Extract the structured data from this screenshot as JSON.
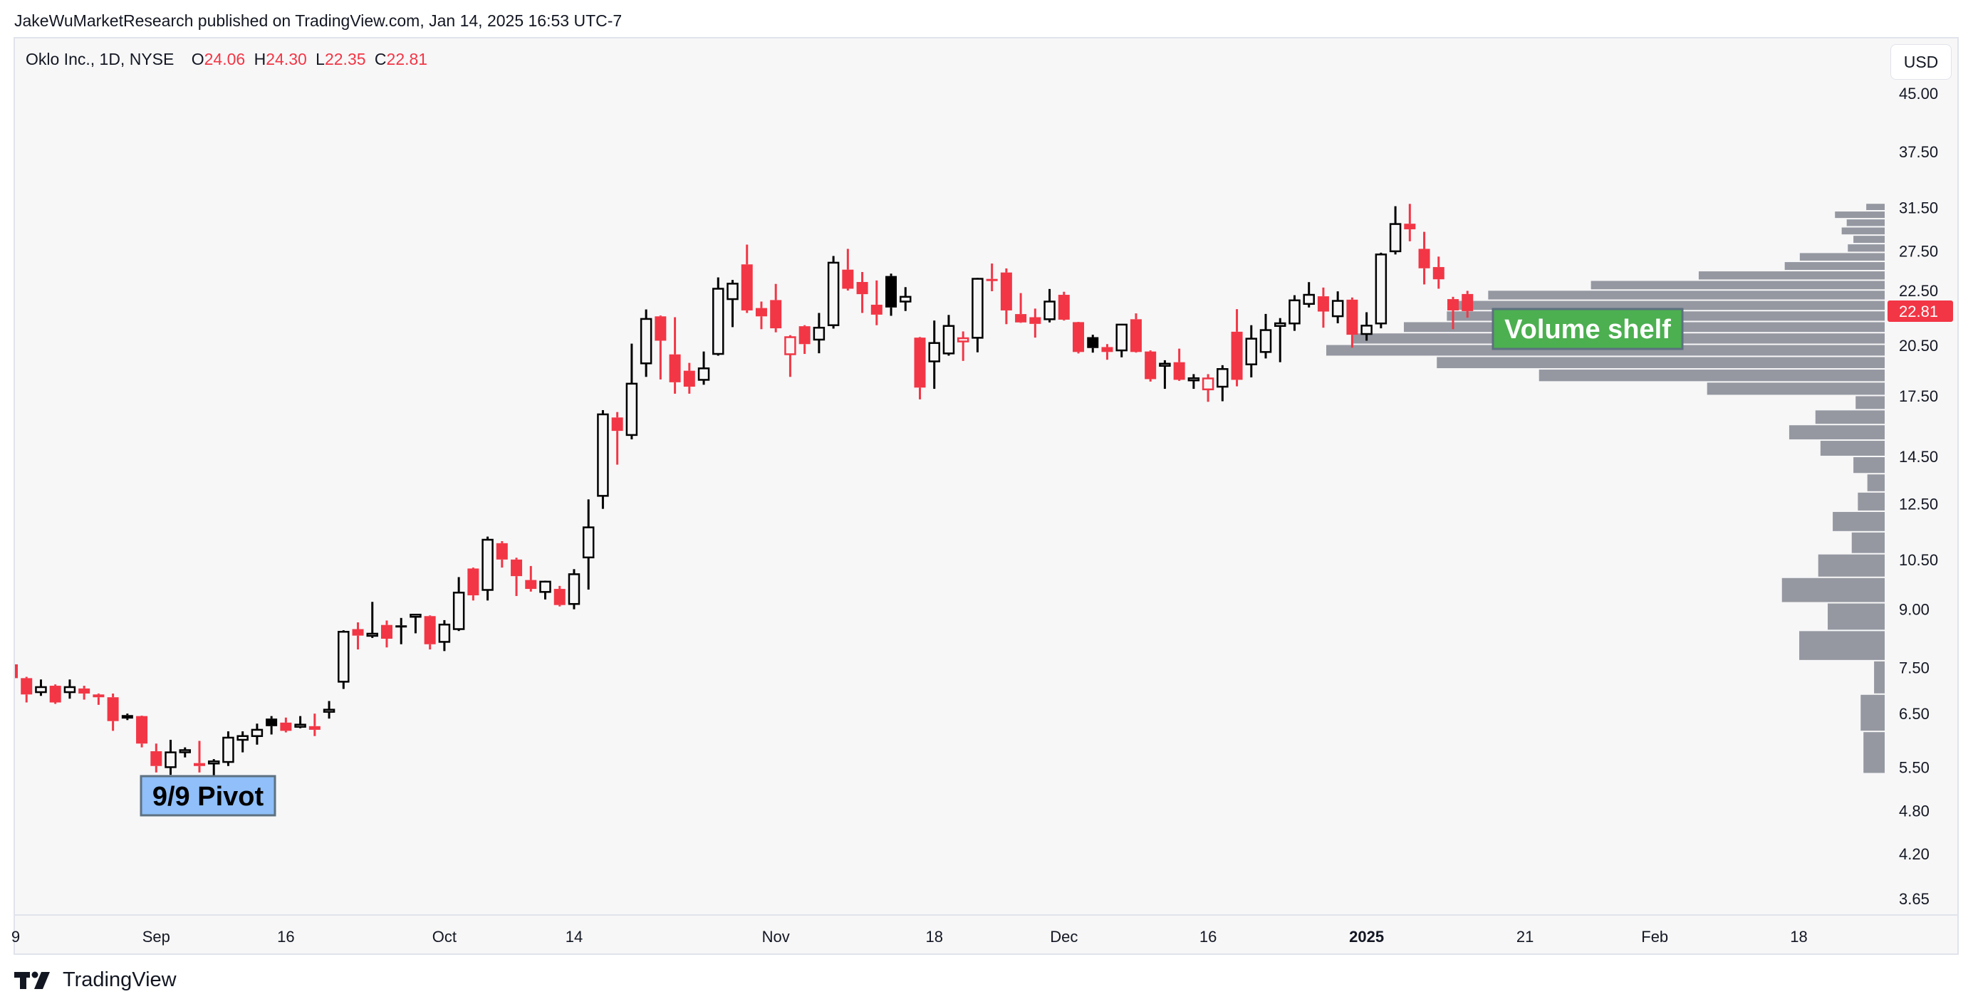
{
  "header": {
    "published": "JakeWuMarketResearch published on TradingView.com, Jan 14, 2025 16:53 UTC-7"
  },
  "legend": {
    "symbol": "Oklo Inc., 1D, NYSE",
    "o_label": "O",
    "o": "24.06",
    "h_label": "H",
    "h": "24.30",
    "l_label": "L",
    "l": "22.35",
    "c_label": "C",
    "c": "22.81"
  },
  "currency_button": "USD",
  "footer": {
    "brand": "TradingView",
    "icon": "tradingview-logo-icon"
  },
  "colors": {
    "up": "#000000",
    "down": "#f23645",
    "volume_profile": "#9598a1",
    "panel_bg": "#f7f7f8",
    "pivot_box": "#90bff9",
    "shelf_box": "#4caf50"
  },
  "annotations": {
    "pivot": "9/9 Pivot",
    "shelf": "Volume shelf"
  },
  "chart_data": {
    "type": "candlestick",
    "y_scale": "log",
    "ylim": [
      3.65,
      45
    ],
    "grid": false,
    "last_price": "22.81",
    "y_ticks": [
      "45.00",
      "37.50",
      "31.50",
      "27.50",
      "22.50",
      "20.50",
      "17.50",
      "14.50",
      "12.50",
      "10.50",
      "9.00",
      "7.50",
      "6.50",
      "5.50",
      "4.80",
      "4.20",
      "3.65"
    ],
    "x_ticks": [
      {
        "label": "9",
        "date": "2024-08-19"
      },
      {
        "label": "Sep",
        "date": "2024-09-03"
      },
      {
        "label": "16",
        "date": "2024-09-16"
      },
      {
        "label": "Oct",
        "date": "2024-10-01"
      },
      {
        "label": "14",
        "date": "2024-10-14"
      },
      {
        "label": "Nov",
        "date": "2024-11-01"
      },
      {
        "label": "18",
        "date": "2024-11-18"
      },
      {
        "label": "Dec",
        "date": "2024-12-02"
      },
      {
        "label": "16",
        "date": "2024-12-16"
      },
      {
        "label": "2025",
        "date": "2025-01-02",
        "bold": true
      },
      {
        "label": "21",
        "date": "2025-01-21"
      },
      {
        "label": "Feb",
        "date": "2025-02-03"
      },
      {
        "label": "18",
        "date": "2025-02-18"
      }
    ],
    "candles_columns": [
      "date",
      "open",
      "high",
      "low",
      "close"
    ],
    "candles": [
      [
        "2024-08-19",
        7.58,
        7.7,
        7.2,
        7.26
      ],
      [
        "2024-08-20",
        7.26,
        7.29,
        6.73,
        6.9
      ],
      [
        "2024-08-21",
        6.95,
        7.23,
        6.87,
        7.06
      ],
      [
        "2024-08-22",
        7.09,
        7.12,
        6.7,
        6.73
      ],
      [
        "2024-08-23",
        6.95,
        7.23,
        6.81,
        7.06
      ],
      [
        "2024-08-26",
        7.03,
        7.09,
        6.79,
        6.92
      ],
      [
        "2024-08-27",
        6.9,
        6.92,
        6.68,
        6.84
      ],
      [
        "2024-08-28",
        6.84,
        6.92,
        6.16,
        6.35
      ],
      [
        "2024-08-29",
        6.47,
        6.5,
        6.37,
        6.4
      ],
      [
        "2024-08-30",
        6.45,
        6.46,
        5.85,
        5.92
      ],
      [
        "2024-09-03",
        5.78,
        5.92,
        5.41,
        5.52
      ],
      [
        "2024-09-04",
        5.5,
        5.99,
        5.37,
        5.76
      ],
      [
        "2024-09-05",
        5.78,
        5.85,
        5.67,
        5.8
      ],
      [
        "2024-09-06",
        5.57,
        5.97,
        5.41,
        5.52
      ],
      [
        "2024-09-09",
        5.57,
        5.64,
        5.28,
        5.6
      ],
      [
        "2024-09-10",
        5.59,
        6.15,
        5.52,
        6.03
      ],
      [
        "2024-09-11",
        5.99,
        6.15,
        5.76,
        6.06
      ],
      [
        "2024-09-12",
        6.06,
        6.3,
        5.9,
        6.18
      ],
      [
        "2024-09-13",
        6.4,
        6.45,
        6.09,
        6.25
      ],
      [
        "2024-09-16",
        6.32,
        6.42,
        6.13,
        6.16
      ],
      [
        "2024-09-17",
        6.27,
        6.45,
        6.21,
        6.28
      ],
      [
        "2024-09-18",
        6.25,
        6.5,
        6.06,
        6.18
      ],
      [
        "2024-09-19",
        6.56,
        6.76,
        6.4,
        6.58
      ],
      [
        "2024-09-20",
        7.18,
        8.43,
        7.02,
        8.39
      ],
      [
        "2024-09-23",
        8.46,
        8.64,
        7.94,
        8.29
      ],
      [
        "2024-09-24",
        8.32,
        9.21,
        8.23,
        8.34
      ],
      [
        "2024-09-25",
        8.57,
        8.69,
        7.99,
        8.21
      ],
      [
        "2024-09-26",
        8.56,
        8.76,
        8.07,
        8.51
      ],
      [
        "2024-09-27",
        8.84,
        8.86,
        8.35,
        8.85
      ],
      [
        "2024-09-30",
        8.81,
        8.83,
        7.94,
        8.07
      ],
      [
        "2024-10-01",
        8.13,
        8.7,
        7.9,
        8.58
      ],
      [
        "2024-10-02",
        8.46,
        9.95,
        8.41,
        9.48
      ],
      [
        "2024-10-03",
        10.22,
        10.25,
        9.25,
        9.4
      ],
      [
        "2024-10-04",
        9.56,
        11.29,
        9.25,
        11.18
      ],
      [
        "2024-10-07",
        11.06,
        11.13,
        10.25,
        10.51
      ],
      [
        "2024-10-08",
        10.51,
        10.57,
        9.38,
        9.98
      ],
      [
        "2024-10-09",
        9.86,
        10.3,
        9.51,
        9.59
      ],
      [
        "2024-10-10",
        9.5,
        9.84,
        9.28,
        9.81
      ],
      [
        "2024-10-11",
        9.59,
        9.68,
        9.08,
        9.12
      ],
      [
        "2024-10-14",
        9.15,
        10.2,
        9.0,
        10.04
      ],
      [
        "2024-10-15",
        10.58,
        12.68,
        9.57,
        11.62
      ],
      [
        "2024-10-16",
        12.82,
        16.75,
        12.31,
        16.53
      ],
      [
        "2024-10-17",
        16.37,
        16.65,
        14.13,
        15.7
      ],
      [
        "2024-10-18",
        15.5,
        20.61,
        15.29,
        18.19
      ],
      [
        "2024-10-21",
        19.38,
        22.93,
        18.58,
        22.26
      ],
      [
        "2024-10-22",
        22.44,
        22.5,
        18.43,
        20.8
      ],
      [
        "2024-10-23",
        19.93,
        22.38,
        17.63,
        18.27
      ],
      [
        "2024-10-24",
        18.94,
        19.41,
        17.63,
        18.02
      ],
      [
        "2024-10-25",
        18.41,
        20.11,
        18.13,
        19.08
      ],
      [
        "2024-10-28",
        19.96,
        25.34,
        19.85,
        24.46
      ],
      [
        "2024-10-29",
        23.68,
        25.14,
        21.7,
        24.85
      ],
      [
        "2024-10-30",
        26.39,
        28.07,
        22.68,
        22.86
      ],
      [
        "2024-10-31",
        23.03,
        23.5,
        21.56,
        22.44
      ],
      [
        "2024-11-01",
        23.61,
        24.83,
        21.35,
        21.62
      ],
      [
        "2024-11-04",
        19.94,
        21.16,
        18.58,
        21.03
      ],
      [
        "2024-11-05",
        21.76,
        21.83,
        19.96,
        20.58
      ],
      [
        "2024-11-06",
        20.87,
        22.68,
        20.0,
        21.66
      ],
      [
        "2024-11-07",
        21.83,
        27.09,
        21.6,
        26.53
      ],
      [
        "2024-11-08",
        25.96,
        27.7,
        24.32,
        24.46
      ],
      [
        "2024-11-11",
        24.98,
        25.77,
        22.68,
        24.05
      ],
      [
        "2024-11-12",
        23.27,
        25.1,
        21.83,
        22.56
      ],
      [
        "2024-11-13",
        25.45,
        25.64,
        22.48,
        23.07
      ],
      [
        "2024-11-14",
        23.5,
        24.58,
        22.82,
        23.85
      ],
      [
        "2024-11-15",
        21.0,
        21.04,
        17.32,
        17.97
      ],
      [
        "2024-11-18",
        19.5,
        22.15,
        17.9,
        20.65
      ],
      [
        "2024-11-19",
        19.99,
        22.54,
        19.85,
        21.78
      ],
      [
        "2024-11-20",
        20.75,
        21.41,
        19.53,
        20.96
      ],
      [
        "2024-11-21",
        20.99,
        25.3,
        20.06,
        25.23
      ],
      [
        "2024-11-22",
        25.22,
        26.46,
        24.27,
        25.18
      ],
      [
        "2024-11-25",
        25.73,
        26.06,
        21.9,
        22.86
      ],
      [
        "2024-11-26",
        22.6,
        24.13,
        21.99,
        22.02
      ],
      [
        "2024-11-27",
        22.38,
        22.99,
        21.0,
        21.92
      ],
      [
        "2024-11-29",
        22.24,
        24.44,
        22.02,
        23.5
      ],
      [
        "2024-12-02",
        24.0,
        24.23,
        22.15,
        22.21
      ],
      [
        "2024-12-03",
        22.04,
        22.06,
        19.99,
        20.08
      ],
      [
        "2024-12-04",
        21.03,
        21.19,
        20.04,
        20.33
      ],
      [
        "2024-12-05",
        20.39,
        20.58,
        19.6,
        20.08
      ],
      [
        "2024-12-06",
        20.18,
        21.92,
        19.75,
        21.87
      ],
      [
        "2024-12-09",
        22.24,
        22.65,
        20.04,
        20.08
      ],
      [
        "2024-12-10",
        20.11,
        20.18,
        18.31,
        18.45
      ],
      [
        "2024-12-11",
        19.32,
        19.57,
        17.9,
        19.36
      ],
      [
        "2024-12-12",
        19.45,
        20.29,
        18.35,
        18.41
      ],
      [
        "2024-12-13",
        18.47,
        18.74,
        17.9,
        18.5
      ],
      [
        "2024-12-16",
        17.87,
        18.74,
        17.19,
        18.49
      ],
      [
        "2024-12-17",
        18.02,
        19.27,
        17.22,
        19.04
      ],
      [
        "2024-12-18",
        21.39,
        22.95,
        18.04,
        18.41
      ],
      [
        "2024-12-19",
        19.32,
        21.83,
        18.55,
        20.93
      ],
      [
        "2024-12-20",
        20.08,
        22.61,
        19.68,
        21.5
      ],
      [
        "2024-12-23",
        21.78,
        22.32,
        19.45,
        21.96
      ],
      [
        "2024-12-24",
        21.95,
        23.97,
        21.45,
        23.59
      ],
      [
        "2024-12-26",
        23.33,
        24.97,
        23.07,
        24.0
      ],
      [
        "2024-12-27",
        23.89,
        24.55,
        21.66,
        22.78
      ],
      [
        "2024-12-30",
        22.45,
        24.26,
        21.96,
        23.55
      ],
      [
        "2024-12-31",
        23.64,
        23.8,
        20.35,
        21.19
      ],
      [
        "2025-01-02",
        21.24,
        22.73,
        20.8,
        21.8
      ],
      [
        "2025-01-03",
        21.95,
        27.37,
        21.62,
        27.22
      ],
      [
        "2025-01-06",
        27.49,
        31.64,
        27.22,
        29.93
      ],
      [
        "2025-01-07",
        29.96,
        31.87,
        28.36,
        29.44
      ],
      [
        "2025-01-08",
        27.7,
        29.21,
        24.79,
        26.07
      ],
      [
        "2025-01-10",
        26.17,
        27.04,
        24.46,
        25.19
      ],
      [
        "2025-01-13",
        23.68,
        23.85,
        21.56,
        22.86
      ],
      [
        "2025-01-14",
        24.06,
        24.3,
        22.35,
        22.81
      ]
    ],
    "volume_profile": {
      "price_low": 5.39,
      "price_high": 31.95,
      "relative_volume_high_to_low": [
        3.3,
        8.9,
        6.8,
        7.7,
        5.6,
        6.6,
        15.2,
        17.9,
        33.3,
        52.6,
        71.0,
        76.5,
        78.4,
        86.1,
        95.2,
        100,
        80.2,
        61.9,
        31.8,
        5.2,
        12.4,
        17.1,
        11.5,
        5.6,
        3.1,
        4.8,
        9.3,
        5.9,
        11.9,
        18.4,
        10.2,
        15.3,
        1.9,
        4.3,
        3.8
      ]
    }
  }
}
